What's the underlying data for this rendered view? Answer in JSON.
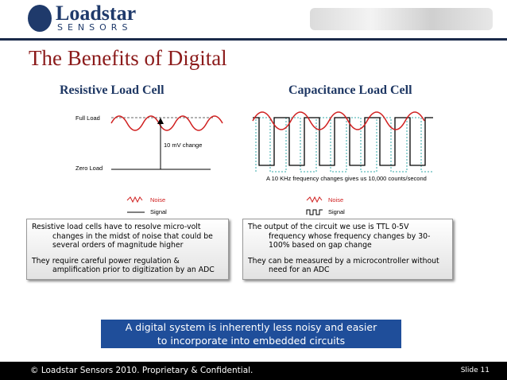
{
  "logo": {
    "name": "Loadstar",
    "sub": "SENSORS"
  },
  "header": {
    "title": "The Benefits of Digital"
  },
  "left": {
    "heading": "Resistive Load Cell",
    "diagram": {
      "full_load": "Full Load",
      "change": "10 mV change",
      "zero_load": "Zero Load"
    },
    "legend": {
      "noise": "Noise",
      "signal": "Signal"
    },
    "bullets": [
      "Resistive load cells have to resolve micro-volt changes in the midst of noise that could be several orders of magnitude higher",
      "They require careful power regulation & amplification prior to digitization by an ADC"
    ]
  },
  "right": {
    "heading": "Capacitance Load Cell",
    "diagram": {
      "caption": "A 10 KHz frequency changes gives us 10,000 counts/second"
    },
    "legend": {
      "noise": "Noise",
      "signal": "Signal"
    },
    "bullets": [
      "The output of the circuit we use is TTL 0-5V frequency whose frequency changes by 30-100% based on gap change",
      "They can be measured by a microcontroller without need for an ADC"
    ]
  },
  "callout": "A digital system is inherently less noisy and easier to incorporate into embedded circuits",
  "footer": {
    "copyright": "© Loadstar Sensors 2010. Proprietary & Confidential.",
    "slide": "Slide 11"
  }
}
